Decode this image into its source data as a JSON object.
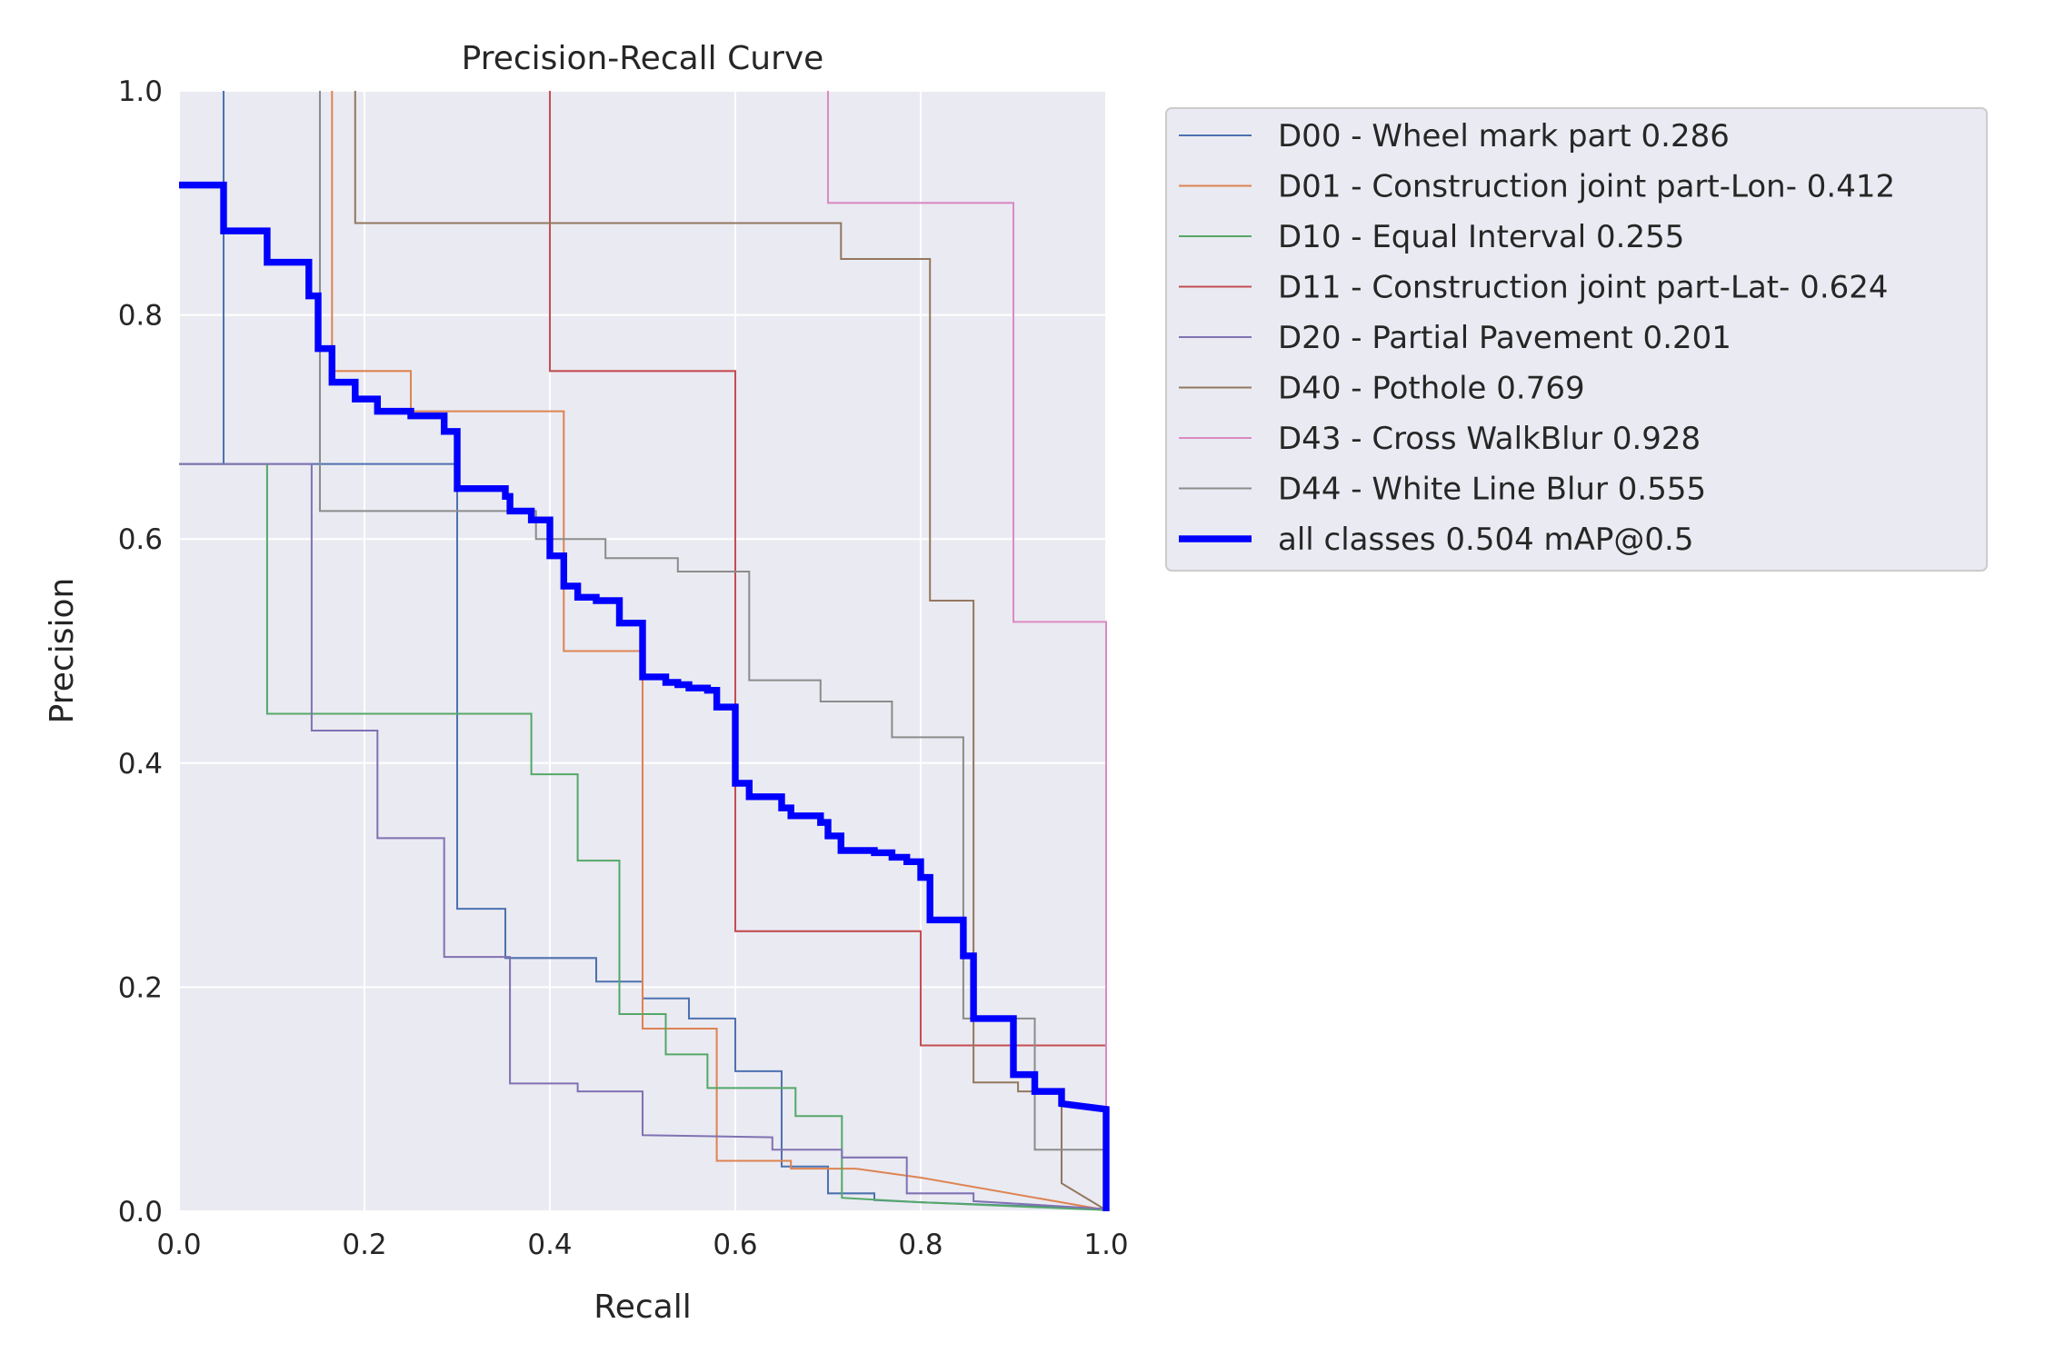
{
  "chart_data": {
    "type": "line",
    "title": "Precision-Recall Curve",
    "xlabel": "Recall",
    "ylabel": "Precision",
    "xlim": [
      0,
      1
    ],
    "ylim": [
      0,
      1
    ],
    "xticks": [
      "0.0",
      "0.2",
      "0.4",
      "0.6",
      "0.8",
      "1.0"
    ],
    "yticks": [
      "0.0",
      "0.2",
      "0.4",
      "0.6",
      "0.8",
      "1.0"
    ],
    "grid": true,
    "legend_position": "outside-right-top",
    "background": "#eaeaf2",
    "series": [
      {
        "name": "D00 - Wheel mark part 0.286",
        "color": "#4c72b0",
        "width": 1.5,
        "points": [
          [
            0,
            0.667
          ],
          [
            0.048,
            0.667
          ],
          [
            0.048,
            1.0
          ],
          [
            0.048,
            0.667
          ],
          [
            0.3,
            0.667
          ],
          [
            0.3,
            0.27
          ],
          [
            0.352,
            0.27
          ],
          [
            0.352,
            0.226
          ],
          [
            0.45,
            0.226
          ],
          [
            0.45,
            0.205
          ],
          [
            0.5,
            0.205
          ],
          [
            0.5,
            0.19
          ],
          [
            0.55,
            0.19
          ],
          [
            0.55,
            0.172
          ],
          [
            0.6,
            0.172
          ],
          [
            0.6,
            0.125
          ],
          [
            0.65,
            0.125
          ],
          [
            0.65,
            0.04
          ],
          [
            0.7,
            0.04
          ],
          [
            0.7,
            0.016
          ],
          [
            0.75,
            0.016
          ],
          [
            0.75,
            0.01
          ],
          [
            0.8,
            0.008
          ],
          [
            1.0,
            0.002
          ]
        ]
      },
      {
        "name": "D01 - Construction joint part-Lon- 0.412",
        "color": "#dd8452",
        "width": 1.5,
        "points": [
          [
            0.165,
            1.0
          ],
          [
            0.165,
            0.75
          ],
          [
            0.25,
            0.75
          ],
          [
            0.25,
            0.714
          ],
          [
            0.415,
            0.714
          ],
          [
            0.415,
            0.5
          ],
          [
            0.5,
            0.5
          ],
          [
            0.5,
            0.163
          ],
          [
            0.58,
            0.163
          ],
          [
            0.58,
            0.045
          ],
          [
            0.66,
            0.045
          ],
          [
            0.66,
            0.038
          ],
          [
            0.73,
            0.038
          ],
          [
            0.8,
            0.03
          ],
          [
            1.0,
            0.001
          ]
        ]
      },
      {
        "name": "D10 - Equal Interval 0.255",
        "color": "#55a868",
        "width": 1.5,
        "points": [
          [
            0,
            0.667
          ],
          [
            0.095,
            0.667
          ],
          [
            0.095,
            0.444
          ],
          [
            0.38,
            0.444
          ],
          [
            0.38,
            0.39
          ],
          [
            0.43,
            0.39
          ],
          [
            0.43,
            0.313
          ],
          [
            0.475,
            0.313
          ],
          [
            0.475,
            0.176
          ],
          [
            0.525,
            0.176
          ],
          [
            0.525,
            0.14
          ],
          [
            0.57,
            0.14
          ],
          [
            0.57,
            0.11
          ],
          [
            0.665,
            0.11
          ],
          [
            0.665,
            0.085
          ],
          [
            0.715,
            0.085
          ],
          [
            0.715,
            0.012
          ],
          [
            0.8,
            0.008
          ],
          [
            1.0,
            0.001
          ]
        ]
      },
      {
        "name": "D11 - Construction joint part-Lat- 0.624",
        "color": "#c44e52",
        "width": 1.5,
        "points": [
          [
            0.4,
            1.0
          ],
          [
            0.4,
            0.75
          ],
          [
            0.6,
            0.75
          ],
          [
            0.6,
            0.25
          ],
          [
            0.8,
            0.25
          ],
          [
            0.8,
            0.148
          ],
          [
            1.0,
            0.148
          ]
        ]
      },
      {
        "name": "D20 - Partial Pavement 0.201",
        "color": "#8172b3",
        "width": 1.5,
        "points": [
          [
            0,
            0.667
          ],
          [
            0.143,
            0.667
          ],
          [
            0.143,
            0.429
          ],
          [
            0.214,
            0.429
          ],
          [
            0.214,
            0.333
          ],
          [
            0.286,
            0.333
          ],
          [
            0.286,
            0.227
          ],
          [
            0.357,
            0.227
          ],
          [
            0.357,
            0.114
          ],
          [
            0.43,
            0.114
          ],
          [
            0.43,
            0.107
          ],
          [
            0.5,
            0.107
          ],
          [
            0.5,
            0.068
          ],
          [
            0.64,
            0.066
          ],
          [
            0.64,
            0.055
          ],
          [
            0.715,
            0.055
          ],
          [
            0.715,
            0.048
          ],
          [
            0.785,
            0.048
          ],
          [
            0.785,
            0.016
          ],
          [
            0.857,
            0.016
          ],
          [
            0.857,
            0.009
          ],
          [
            1.0,
            0.002
          ]
        ]
      },
      {
        "name": "D40 - Pothole 0.769",
        "color": "#937860",
        "width": 1.5,
        "points": [
          [
            0.19,
            1.0
          ],
          [
            0.19,
            0.882
          ],
          [
            0.714,
            0.882
          ],
          [
            0.714,
            0.85
          ],
          [
            0.81,
            0.85
          ],
          [
            0.81,
            0.545
          ],
          [
            0.857,
            0.545
          ],
          [
            0.857,
            0.115
          ],
          [
            0.905,
            0.115
          ],
          [
            0.905,
            0.107
          ],
          [
            0.952,
            0.107
          ],
          [
            0.952,
            0.025
          ],
          [
            1.0,
            0.001
          ]
        ]
      },
      {
        "name": "D43 - Cross WalkBlur 0.928",
        "color": "#da8bc3",
        "width": 1.5,
        "points": [
          [
            0.7,
            1.0
          ],
          [
            0.7,
            0.9
          ],
          [
            0.9,
            0.9
          ],
          [
            0.9,
            0.526
          ],
          [
            1.0,
            0.526
          ],
          [
            1.0,
            0.0
          ]
        ]
      },
      {
        "name": "D44 - White Line Blur 0.555",
        "color": "#8c8c8c",
        "width": 1.5,
        "points": [
          [
            0.152,
            1.0
          ],
          [
            0.152,
            0.625
          ],
          [
            0.385,
            0.625
          ],
          [
            0.385,
            0.6
          ],
          [
            0.46,
            0.6
          ],
          [
            0.46,
            0.583
          ],
          [
            0.538,
            0.583
          ],
          [
            0.538,
            0.571
          ],
          [
            0.615,
            0.571
          ],
          [
            0.615,
            0.474
          ],
          [
            0.692,
            0.474
          ],
          [
            0.692,
            0.455
          ],
          [
            0.769,
            0.455
          ],
          [
            0.769,
            0.423
          ],
          [
            0.846,
            0.423
          ],
          [
            0.846,
            0.172
          ],
          [
            0.923,
            0.172
          ],
          [
            0.923,
            0.055
          ],
          [
            1.0,
            0.055
          ],
          [
            1.0,
            0.0
          ]
        ]
      },
      {
        "name": "all classes 0.504 mAP@0.5",
        "color": "#0000ff",
        "width": 5.5,
        "points": [
          [
            0,
            0.916
          ],
          [
            0.048,
            0.916
          ],
          [
            0.048,
            0.875
          ],
          [
            0.095,
            0.875
          ],
          [
            0.095,
            0.847
          ],
          [
            0.14,
            0.847
          ],
          [
            0.14,
            0.817
          ],
          [
            0.15,
            0.817
          ],
          [
            0.15,
            0.77
          ],
          [
            0.165,
            0.77
          ],
          [
            0.165,
            0.74
          ],
          [
            0.19,
            0.74
          ],
          [
            0.19,
            0.725
          ],
          [
            0.214,
            0.725
          ],
          [
            0.214,
            0.714
          ],
          [
            0.25,
            0.714
          ],
          [
            0.25,
            0.71
          ],
          [
            0.286,
            0.71
          ],
          [
            0.286,
            0.696
          ],
          [
            0.3,
            0.696
          ],
          [
            0.3,
            0.645
          ],
          [
            0.352,
            0.645
          ],
          [
            0.352,
            0.638
          ],
          [
            0.357,
            0.638
          ],
          [
            0.357,
            0.625
          ],
          [
            0.38,
            0.625
          ],
          [
            0.38,
            0.617
          ],
          [
            0.4,
            0.617
          ],
          [
            0.4,
            0.585
          ],
          [
            0.415,
            0.585
          ],
          [
            0.415,
            0.558
          ],
          [
            0.43,
            0.558
          ],
          [
            0.43,
            0.548
          ],
          [
            0.45,
            0.548
          ],
          [
            0.45,
            0.545
          ],
          [
            0.475,
            0.545
          ],
          [
            0.475,
            0.525
          ],
          [
            0.5,
            0.525
          ],
          [
            0.5,
            0.477
          ],
          [
            0.525,
            0.477
          ],
          [
            0.525,
            0.472
          ],
          [
            0.538,
            0.472
          ],
          [
            0.538,
            0.47
          ],
          [
            0.55,
            0.47
          ],
          [
            0.55,
            0.467
          ],
          [
            0.57,
            0.467
          ],
          [
            0.57,
            0.465
          ],
          [
            0.58,
            0.465
          ],
          [
            0.58,
            0.45
          ],
          [
            0.6,
            0.45
          ],
          [
            0.6,
            0.382
          ],
          [
            0.615,
            0.382
          ],
          [
            0.615,
            0.37
          ],
          [
            0.65,
            0.37
          ],
          [
            0.65,
            0.36
          ],
          [
            0.66,
            0.36
          ],
          [
            0.66,
            0.353
          ],
          [
            0.692,
            0.353
          ],
          [
            0.692,
            0.347
          ],
          [
            0.7,
            0.347
          ],
          [
            0.7,
            0.335
          ],
          [
            0.714,
            0.335
          ],
          [
            0.714,
            0.322
          ],
          [
            0.75,
            0.322
          ],
          [
            0.75,
            0.32
          ],
          [
            0.769,
            0.32
          ],
          [
            0.769,
            0.316
          ],
          [
            0.785,
            0.316
          ],
          [
            0.785,
            0.312
          ],
          [
            0.8,
            0.312
          ],
          [
            0.8,
            0.298
          ],
          [
            0.81,
            0.298
          ],
          [
            0.81,
            0.26
          ],
          [
            0.846,
            0.26
          ],
          [
            0.846,
            0.228
          ],
          [
            0.857,
            0.228
          ],
          [
            0.857,
            0.172
          ],
          [
            0.9,
            0.172
          ],
          [
            0.9,
            0.122
          ],
          [
            0.923,
            0.122
          ],
          [
            0.923,
            0.107
          ],
          [
            0.952,
            0.107
          ],
          [
            0.952,
            0.096
          ],
          [
            1.0,
            0.091
          ],
          [
            1.0,
            0.0
          ]
        ]
      }
    ]
  }
}
